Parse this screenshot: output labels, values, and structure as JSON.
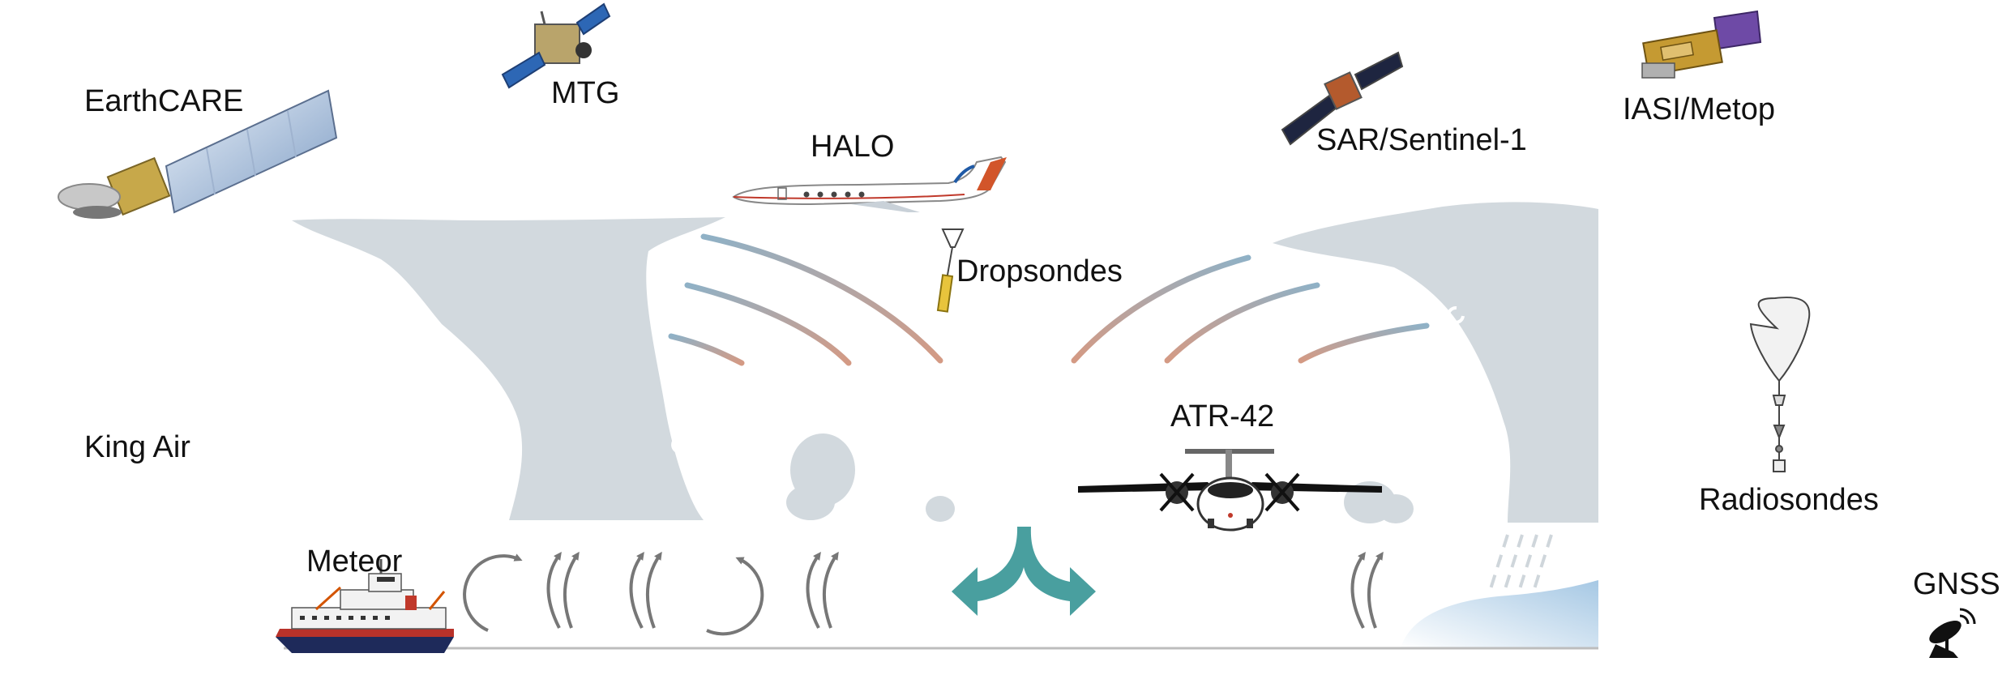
{
  "labels": {
    "earthcare": "EarthCARE",
    "mtg": "MTG",
    "halo": "HALO",
    "sar": "SAR/Sentinel-1",
    "iasi": "IASI/Metop",
    "dropsondes": "Dropsondes",
    "king_air": "King Air",
    "atr42": "ATR-42",
    "radiosondes": "Radiosondes",
    "meteor": "Meteor",
    "gnss": "GNSS"
  },
  "colors": {
    "cloud": "#d2d9de",
    "ocean_teal": "#3f9a9a",
    "arrow_gray": "#7a7a7a",
    "ice_blue": "#a9c9e6",
    "streamline_red": "#c8907f",
    "streamline_blue": "#8fb1c6"
  },
  "icons": [
    "satellite-icon",
    "aircraft-icon",
    "dropsonde-icon",
    "ship-icon",
    "balloon-icon",
    "antenna-icon"
  ]
}
